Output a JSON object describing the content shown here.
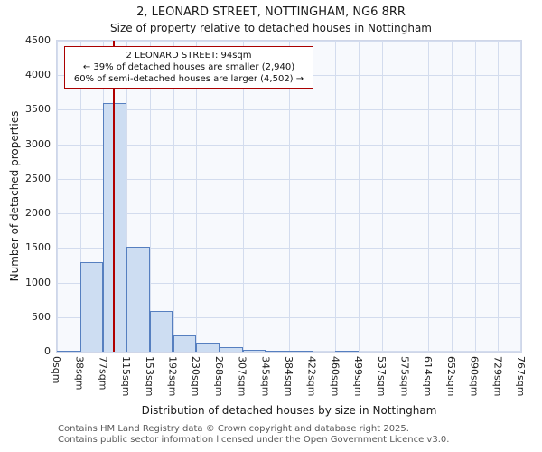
{
  "chart_data": {
    "type": "bar",
    "title": "2, LEONARD STREET, NOTTINGHAM, NG6 8RR",
    "subtitle": "Size of property relative to detached houses in Nottingham",
    "xlabel": "Distribution of detached houses by size in Nottingham",
    "ylabel": "Number of detached properties",
    "x_tick_labels": [
      "0sqm",
      "38sqm",
      "77sqm",
      "115sqm",
      "153sqm",
      "192sqm",
      "230sqm",
      "268sqm",
      "307sqm",
      "345sqm",
      "384sqm",
      "422sqm",
      "460sqm",
      "499sqm",
      "537sqm",
      "575sqm",
      "614sqm",
      "652sqm",
      "690sqm",
      "729sqm",
      "767sqm"
    ],
    "values": [
      15,
      1300,
      3600,
      1520,
      590,
      230,
      125,
      70,
      30,
      15,
      10,
      0,
      15,
      0,
      0,
      0,
      0,
      0,
      0,
      0
    ],
    "ylim": [
      0,
      4500
    ],
    "y_ticks": [
      0,
      500,
      1000,
      1500,
      2000,
      2500,
      3000,
      3500,
      4000,
      4500
    ],
    "x_max_sqm": 767,
    "grid": true,
    "legend": "none",
    "bar_fill": "#cdddf2",
    "bar_edge": "#567fc0",
    "marker": {
      "value_sqm": 94,
      "color": "#b00000"
    },
    "annotation": {
      "line1": "2 LEONARD STREET: 94sqm",
      "line2": "← 39% of detached houses are smaller (2,940)",
      "line3": "60% of semi-detached houses are larger (4,502) →"
    }
  },
  "footer": {
    "line1": "Contains HM Land Registry data © Crown copyright and database right 2025.",
    "line2": "Contains public sector information licensed under the Open Government Licence v3.0."
  }
}
